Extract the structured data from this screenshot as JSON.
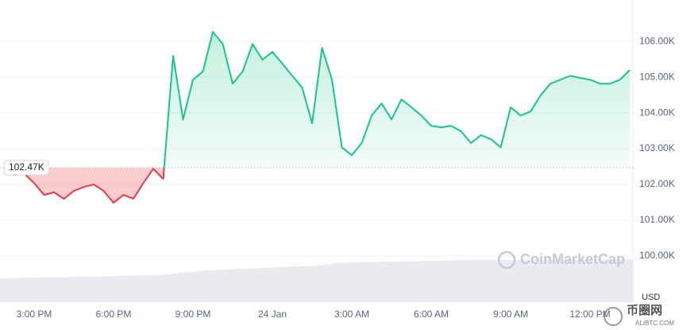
{
  "chart_data": {
    "type": "line",
    "series": [
      {
        "color": "#16c784",
        "below_color": "#ea3943",
        "values": [
          102.38,
          102.27,
          102.31,
          102.04,
          101.71,
          101.78,
          101.6,
          101.82,
          101.93,
          102.0,
          101.82,
          101.49,
          101.71,
          101.6,
          102.04,
          102.44,
          102.16,
          105.6,
          103.82,
          104.93,
          105.16,
          106.27,
          105.93,
          104.82,
          105.16,
          105.93,
          105.49,
          105.71,
          105.38,
          105.04,
          104.71,
          103.71,
          105.82,
          104.93,
          103.04,
          102.82,
          103.16,
          103.93,
          104.27,
          103.82,
          104.38,
          104.16,
          103.93,
          103.64,
          103.6,
          103.64,
          103.49,
          103.16,
          103.38,
          103.27,
          103.04,
          104.16,
          103.93,
          104.04,
          104.49,
          104.82,
          104.93,
          105.04,
          104.98,
          104.93,
          104.82,
          104.82,
          104.93,
          105.2
        ]
      }
    ],
    "x": [
      -3,
      -2,
      -1,
      0,
      1,
      2,
      3,
      4,
      5,
      6,
      7,
      8,
      9,
      10,
      11,
      12,
      13,
      14,
      15,
      16,
      17,
      18,
      19,
      20,
      21,
      22,
      23,
      24,
      25,
      26,
      27,
      28,
      29,
      30,
      31,
      32,
      33,
      34,
      35,
      36,
      37,
      38,
      39,
      40,
      41,
      42,
      43,
      44,
      45,
      46,
      47,
      48,
      49,
      50,
      51,
      52,
      53,
      54,
      55,
      56,
      57,
      58,
      59,
      60
    ],
    "xlim": [
      -3.44,
      60.32
    ],
    "xticks": [
      {
        "value": 0,
        "label": "3:00 PM"
      },
      {
        "value": 8,
        "label": "6:00 PM"
      },
      {
        "value": 16,
        "label": "9:00 PM"
      },
      {
        "value": 24,
        "label": "24 Jan"
      },
      {
        "value": 32,
        "label": "3:00 AM"
      },
      {
        "value": 40,
        "label": "6:00 AM"
      },
      {
        "value": 48,
        "label": "9:00 AM"
      },
      {
        "value": 56,
        "label": "12:00 PM"
      }
    ],
    "ylim": [
      98.71,
      107.16
    ],
    "yticks": [
      {
        "value": 100,
        "label": "100.00K"
      },
      {
        "value": 101,
        "label": "101.00K"
      },
      {
        "value": 102,
        "label": "102.00K"
      },
      {
        "value": 103,
        "label": "103.00K"
      },
      {
        "value": 104,
        "label": "104.00K"
      },
      {
        "value": 105,
        "label": "105.00K"
      },
      {
        "value": 106,
        "label": "106.00K"
      }
    ],
    "baseline": {
      "value": 102.47,
      "label": "102.47K"
    },
    "y_unit": "USD",
    "watermark": "CoinMarketCap",
    "corner_logo": {
      "name": "币圈网",
      "url": "ALIBTC.COM"
    },
    "grid": true
  }
}
